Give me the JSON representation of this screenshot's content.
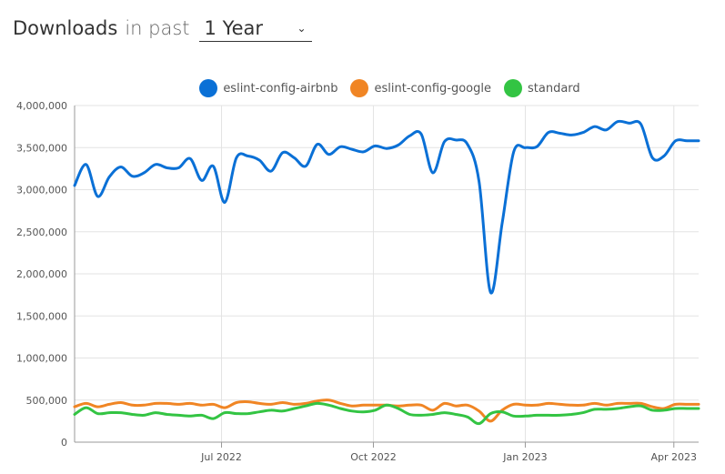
{
  "header": {
    "title": "Downloads",
    "subtitle": "in past",
    "period": "1 Year"
  },
  "colors": {
    "grid": "#e3e3e3",
    "axis": "#999999"
  },
  "chart_data": {
    "type": "line",
    "title": "",
    "xlabel": "",
    "ylabel": "",
    "ylim": [
      0,
      4000000
    ],
    "yticks": [
      0,
      500000,
      1000000,
      1500000,
      2000000,
      2500000,
      3000000,
      3500000,
      4000000
    ],
    "ytick_labels": [
      "0",
      "500,000",
      "1,000,000",
      "1,500,000",
      "2,000,000",
      "2,500,000",
      "3,000,000",
      "3,500,000",
      "4,000,000"
    ],
    "xlim": [
      "2022-04-03",
      "2023-04-16"
    ],
    "xticks": [
      "2022-07-01",
      "2022-10-01",
      "2023-01-01",
      "2023-04-01"
    ],
    "xtick_labels": [
      "Jul 2022",
      "Oct 2022",
      "Jan 2023",
      "Apr 2023"
    ],
    "grid": true,
    "legend_position": "top-center",
    "x": [
      "2022-04-03",
      "2022-04-10",
      "2022-04-17",
      "2022-04-24",
      "2022-05-01",
      "2022-05-08",
      "2022-05-15",
      "2022-05-22",
      "2022-05-29",
      "2022-06-05",
      "2022-06-12",
      "2022-06-19",
      "2022-06-26",
      "2022-07-03",
      "2022-07-10",
      "2022-07-17",
      "2022-07-24",
      "2022-07-31",
      "2022-08-07",
      "2022-08-14",
      "2022-08-21",
      "2022-08-28",
      "2022-09-04",
      "2022-09-11",
      "2022-09-18",
      "2022-09-25",
      "2022-10-02",
      "2022-10-09",
      "2022-10-16",
      "2022-10-23",
      "2022-10-30",
      "2022-11-06",
      "2022-11-13",
      "2022-11-20",
      "2022-11-27",
      "2022-12-04",
      "2022-12-11",
      "2022-12-18",
      "2022-12-25",
      "2023-01-01",
      "2023-01-08",
      "2023-01-15",
      "2023-01-22",
      "2023-01-29",
      "2023-02-05",
      "2023-02-12",
      "2023-02-19",
      "2023-02-26",
      "2023-03-05",
      "2023-03-12",
      "2023-03-19",
      "2023-03-26",
      "2023-04-02",
      "2023-04-09",
      "2023-04-16"
    ],
    "series": [
      {
        "name": "eslint-config-airbnb",
        "color": "#0a70d6",
        "values": [
          3050000,
          3300000,
          2920000,
          3150000,
          3270000,
          3160000,
          3200000,
          3300000,
          3260000,
          3260000,
          3370000,
          3110000,
          3280000,
          2850000,
          3380000,
          3400000,
          3350000,
          3220000,
          3440000,
          3380000,
          3280000,
          3540000,
          3420000,
          3510000,
          3480000,
          3450000,
          3520000,
          3490000,
          3530000,
          3640000,
          3660000,
          3200000,
          3570000,
          3590000,
          3540000,
          3100000,
          1780000,
          2600000,
          3450000,
          3500000,
          3510000,
          3680000,
          3670000,
          3650000,
          3680000,
          3750000,
          3710000,
          3810000,
          3790000,
          3780000,
          3380000,
          3400000,
          3580000,
          3580000,
          3580000
        ]
      },
      {
        "name": "eslint-config-google",
        "color": "#f08524",
        "values": [
          420000,
          460000,
          420000,
          450000,
          470000,
          440000,
          440000,
          460000,
          460000,
          450000,
          460000,
          440000,
          450000,
          410000,
          470000,
          480000,
          460000,
          450000,
          470000,
          450000,
          460000,
          490000,
          500000,
          460000,
          430000,
          440000,
          440000,
          440000,
          430000,
          440000,
          440000,
          380000,
          460000,
          430000,
          440000,
          370000,
          250000,
          380000,
          450000,
          440000,
          440000,
          460000,
          450000,
          440000,
          440000,
          460000,
          440000,
          460000,
          460000,
          460000,
          420000,
          400000,
          450000,
          450000,
          450000
        ]
      },
      {
        "name": "standard",
        "color": "#33c443",
        "values": [
          330000,
          410000,
          340000,
          350000,
          350000,
          330000,
          320000,
          350000,
          330000,
          320000,
          310000,
          320000,
          280000,
          350000,
          340000,
          340000,
          360000,
          380000,
          370000,
          400000,
          430000,
          460000,
          440000,
          400000,
          370000,
          360000,
          380000,
          440000,
          400000,
          330000,
          320000,
          330000,
          350000,
          330000,
          300000,
          220000,
          340000,
          360000,
          310000,
          310000,
          320000,
          320000,
          320000,
          330000,
          350000,
          390000,
          390000,
          400000,
          420000,
          430000,
          380000,
          380000,
          400000,
          400000,
          400000
        ]
      }
    ]
  }
}
